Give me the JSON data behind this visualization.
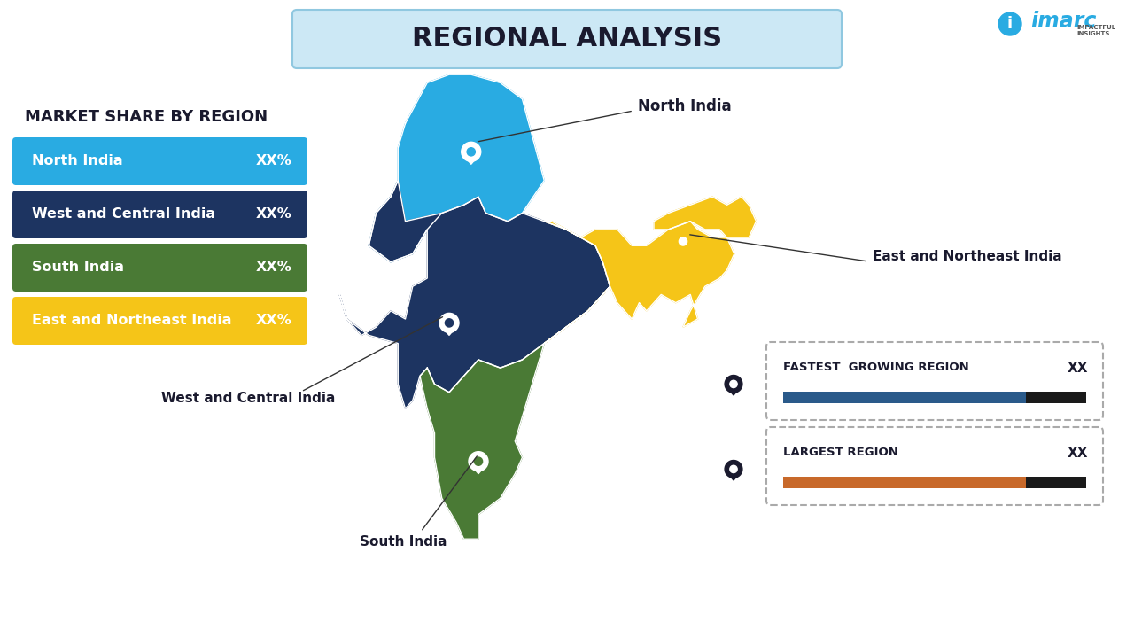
{
  "title": "REGIONAL ANALYSIS",
  "title_color": "#1a1a2e",
  "title_bg_color": "#cce8f5",
  "background_color": "#ffffff",
  "legend_title": "MARKET SHARE BY REGION",
  "regions": [
    {
      "name": "North India",
      "color": "#29abe2",
      "value": "XX%"
    },
    {
      "name": "West and Central India",
      "color": "#1d3461",
      "value": "XX%"
    },
    {
      "name": "South India",
      "color": "#4a7a35",
      "value": "XX%"
    },
    {
      "name": "East and Northeast India",
      "color": "#f5c518",
      "value": "XX%"
    }
  ],
  "info_boxes": [
    {
      "label": "LARGEST REGION",
      "value": "XX",
      "bar_color": "#c8692a",
      "bar_remaining": "#1a1a1a"
    },
    {
      "label": "FASTEST  GROWING REGION",
      "value": "XX",
      "bar_color": "#2a5a8a",
      "bar_remaining": "#1a1a1a"
    }
  ],
  "imarc_color": "#29abe2",
  "pin_color_dark": "#1a1a2e",
  "pin_color_yellow": "#f5c518"
}
